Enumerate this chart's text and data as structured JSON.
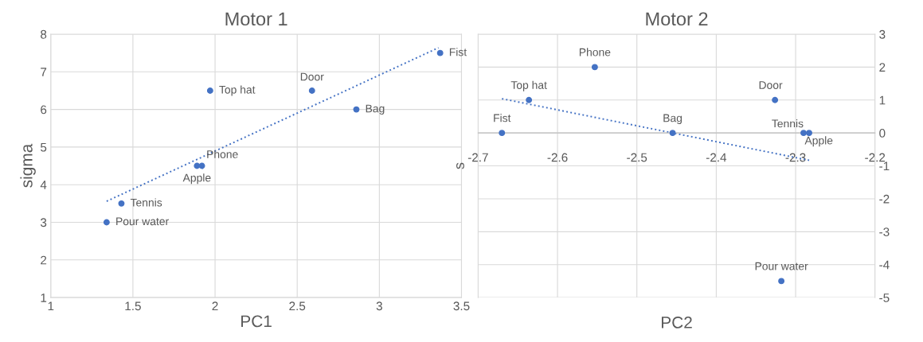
{
  "chart_data": [
    {
      "type": "scatter",
      "title": "Motor 1",
      "xlabel": "PC1",
      "ylabel": "sigma",
      "xlim": [
        1,
        3.5
      ],
      "ylim": [
        1,
        8
      ],
      "xticks": [
        1,
        1.5,
        2,
        2.5,
        3,
        3.5
      ],
      "yticks": [
        1,
        2,
        3,
        4,
        5,
        6,
        7,
        8
      ],
      "grid": true,
      "series": [
        {
          "marker": "circle",
          "color": "#4472c4",
          "x": [
            3.37,
            2.59,
            2.86,
            1.97,
            1.92,
            1.89,
            1.43,
            1.34
          ],
          "values": [
            7.5,
            6.5,
            6,
            6.5,
            4.5,
            4.5,
            3.5,
            3
          ]
        },
        {
          "type": "line",
          "color": "#4472c4",
          "line_style": "dotted",
          "x": [
            1.34,
            3.36
          ],
          "values": [
            3.56,
            7.64
          ]
        }
      ],
      "annotations": [
        {
          "text": "Fist",
          "x": 3.37,
          "y": 7.5
        },
        {
          "text": "Door",
          "x": 2.59,
          "y": 6.5
        },
        {
          "text": "Bag",
          "x": 2.86,
          "y": 6
        },
        {
          "text": "Top hat",
          "x": 1.97,
          "y": 6.5
        },
        {
          "text": "Phone",
          "x": 1.92,
          "y": 4.5
        },
        {
          "text": "Apple",
          "x": 1.89,
          "y": 4.5
        },
        {
          "text": "Tennis",
          "x": 1.43,
          "y": 3.5
        },
        {
          "text": "Pour water",
          "x": 1.34,
          "y": 3
        }
      ]
    },
    {
      "type": "scatter",
      "title": "Motor 2",
      "xlabel": "PC2",
      "ylabel": "s",
      "xlim": [
        -2.7,
        -2.2
      ],
      "ylim": [
        -5,
        3
      ],
      "xticks": [
        -2.7,
        -2.6,
        -2.5,
        -2.4,
        -2.3,
        -2.2
      ],
      "yticks": [
        -5,
        -4,
        -3,
        -2,
        -1,
        0,
        1,
        2,
        3
      ],
      "grid": true,
      "series": [
        {
          "marker": "circle",
          "color": "#4472c4",
          "x": [
            -2.67,
            -2.636,
            -2.553,
            -2.455,
            -2.326,
            -2.29,
            -2.283,
            -2.318
          ],
          "values": [
            0,
            1,
            2,
            0,
            1,
            0,
            0,
            -4.5
          ]
        },
        {
          "type": "line",
          "color": "#4472c4",
          "line_style": "dotted",
          "x": [
            -2.67,
            -2.283
          ],
          "values": [
            1.04,
            -0.83
          ]
        }
      ],
      "annotations": [
        {
          "text": "Fist",
          "x": -2.67,
          "y": 0
        },
        {
          "text": "Top hat",
          "x": -2.636,
          "y": 1
        },
        {
          "text": "Phone",
          "x": -2.553,
          "y": 2
        },
        {
          "text": "Bag",
          "x": -2.455,
          "y": 0
        },
        {
          "text": "Door",
          "x": -2.326,
          "y": 1
        },
        {
          "text": "Tennis",
          "x": -2.29,
          "y": 0
        },
        {
          "text": "Apple",
          "x": -2.283,
          "y": 0
        },
        {
          "text": "Pour water",
          "x": -2.318,
          "y": -4.5
        }
      ]
    }
  ]
}
